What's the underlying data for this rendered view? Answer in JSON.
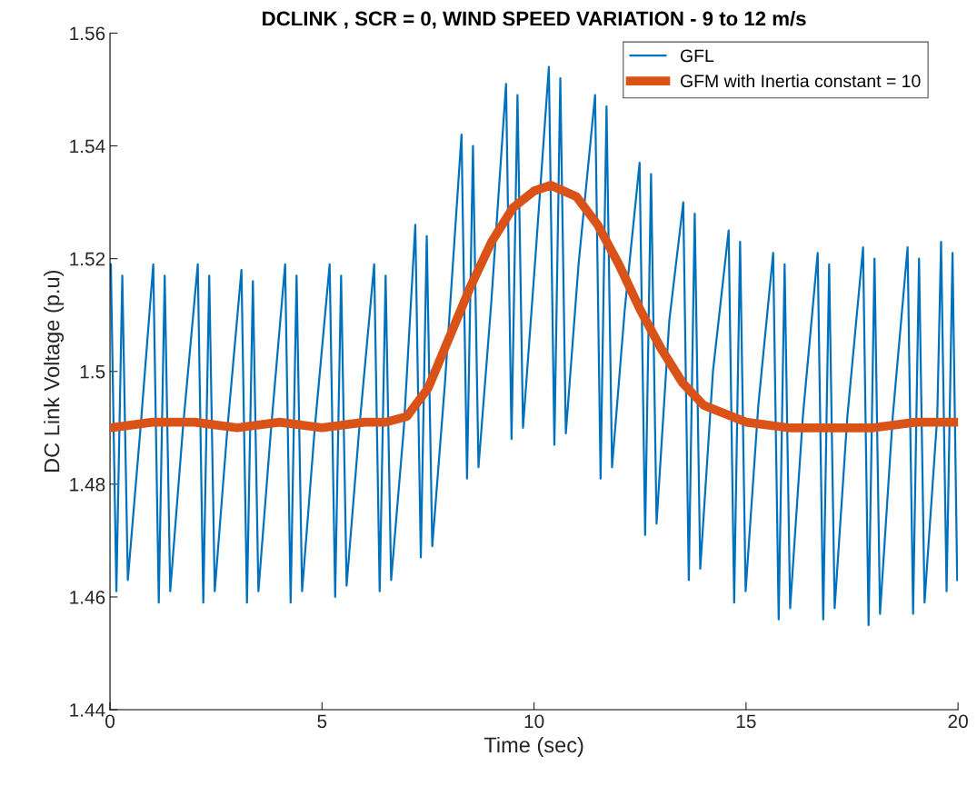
{
  "chart_data": {
    "type": "line",
    "title": "DCLINK , SCR = 0, WIND SPEED VARIATION - 9 to 12 m/s",
    "xlabel": "Time (sec)",
    "ylabel": "DC Link Voltage (p.u)",
    "xlim": [
      0,
      20
    ],
    "xticks": [
      0,
      5,
      10,
      15,
      20
    ],
    "ylim": [
      1.44,
      1.56
    ],
    "yticks": [
      {
        "value": 1.44,
        "label": "1.44"
      },
      {
        "value": 1.46,
        "label": "1.46"
      },
      {
        "value": 1.48,
        "label": "1.48"
      },
      {
        "value": 1.5,
        "label": "1.5"
      },
      {
        "value": 1.52,
        "label": "1.52"
      },
      {
        "value": 1.54,
        "label": "1.54"
      },
      {
        "value": 1.56,
        "label": "1.56"
      }
    ],
    "grid": false,
    "legend": "top right",
    "series": [
      {
        "name": "GFL",
        "color": "#0072bd",
        "line_style": "solid",
        "x": [
          0.02,
          0.15,
          0.29,
          0.42,
          0.72,
          1.02,
          1.15,
          1.29,
          1.42,
          1.72,
          2.07,
          2.2,
          2.34,
          2.47,
          2.77,
          3.1,
          3.23,
          3.37,
          3.5,
          3.8,
          4.13,
          4.26,
          4.4,
          4.53,
          4.83,
          5.18,
          5.31,
          5.45,
          5.58,
          5.88,
          6.23,
          6.36,
          6.5,
          6.63,
          6.93,
          7.2,
          7.33,
          7.47,
          7.6,
          7.9,
          8.29,
          8.42,
          8.56,
          8.69,
          8.99,
          9.34,
          9.47,
          9.61,
          9.74,
          10.04,
          10.35,
          10.48,
          10.62,
          10.75,
          11.05,
          11.44,
          11.57,
          11.71,
          11.84,
          12.14,
          12.49,
          12.62,
          12.76,
          12.89,
          13.19,
          13.52,
          13.65,
          13.79,
          13.92,
          14.22,
          14.59,
          14.72,
          14.86,
          14.99,
          15.29,
          15.64,
          15.77,
          15.91,
          16.04,
          16.34,
          16.69,
          16.82,
          16.96,
          17.09,
          17.39,
          17.76,
          17.89,
          18.03,
          18.16,
          18.46,
          18.81,
          18.94,
          19.08,
          19.21,
          19.51,
          19.6,
          19.73,
          19.87,
          19.98
        ],
        "values": [
          1.519,
          1.461,
          1.517,
          1.463,
          1.49,
          1.519,
          1.459,
          1.517,
          1.461,
          1.49,
          1.519,
          1.459,
          1.517,
          1.461,
          1.49,
          1.518,
          1.459,
          1.516,
          1.461,
          1.49,
          1.519,
          1.459,
          1.517,
          1.461,
          1.49,
          1.519,
          1.46,
          1.517,
          1.462,
          1.49,
          1.519,
          1.461,
          1.517,
          1.463,
          1.49,
          1.526,
          1.467,
          1.524,
          1.469,
          1.498,
          1.542,
          1.481,
          1.54,
          1.483,
          1.512,
          1.551,
          1.488,
          1.549,
          1.49,
          1.521,
          1.554,
          1.487,
          1.552,
          1.489,
          1.519,
          1.549,
          1.481,
          1.547,
          1.483,
          1.511,
          1.537,
          1.471,
          1.535,
          1.473,
          1.509,
          1.53,
          1.463,
          1.528,
          1.465,
          1.5,
          1.525,
          1.459,
          1.523,
          1.461,
          1.494,
          1.521,
          1.456,
          1.519,
          1.458,
          1.492,
          1.521,
          1.456,
          1.519,
          1.458,
          1.492,
          1.522,
          1.455,
          1.52,
          1.457,
          1.492,
          1.522,
          1.457,
          1.52,
          1.459,
          1.492,
          1.523,
          1.461,
          1.521,
          1.463
        ]
      },
      {
        "name": "GFM with Inertia constant = 10",
        "color": "#d95319",
        "line_style": "solid",
        "x": [
          0,
          1,
          2,
          3,
          4,
          5,
          6,
          6.5,
          7,
          7.5,
          8,
          8.5,
          9,
          9.5,
          10,
          10.4,
          11,
          11.5,
          12,
          12.5,
          13,
          13.5,
          14,
          15,
          16,
          17,
          18,
          19,
          20
        ],
        "values": [
          1.49,
          1.491,
          1.491,
          1.49,
          1.491,
          1.49,
          1.491,
          1.491,
          1.492,
          1.497,
          1.506,
          1.515,
          1.523,
          1.529,
          1.532,
          1.533,
          1.531,
          1.526,
          1.519,
          1.511,
          1.504,
          1.498,
          1.494,
          1.491,
          1.49,
          1.49,
          1.49,
          1.491,
          1.491
        ]
      }
    ]
  }
}
